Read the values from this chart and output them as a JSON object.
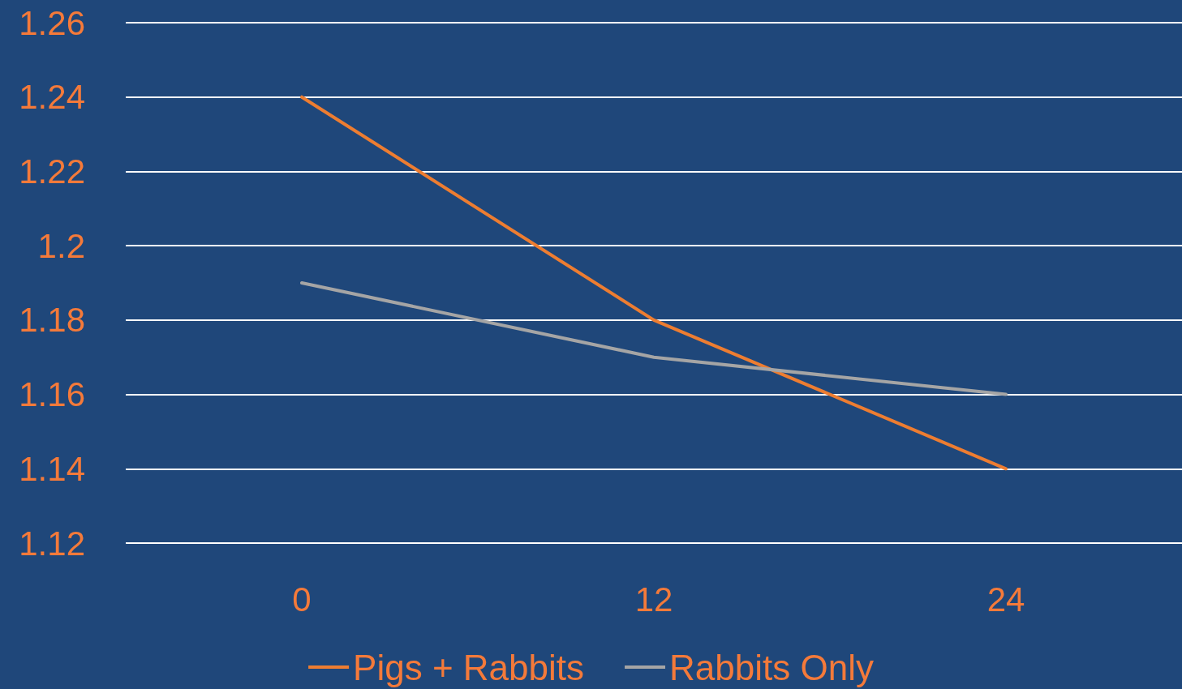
{
  "chart_data": {
    "type": "line",
    "categories": [
      "0",
      "12",
      "24"
    ],
    "series": [
      {
        "name": "Pigs + Rabbits",
        "color": "#ed7d31",
        "values": [
          1.24,
          1.18,
          1.14
        ]
      },
      {
        "name": "Rabbits Only",
        "color": "#a5a5a5",
        "values": [
          1.19,
          1.17,
          1.16
        ]
      }
    ],
    "ylim": [
      1.12,
      1.26
    ],
    "yticks": [
      1.12,
      1.14,
      1.16,
      1.18,
      1.2,
      1.22,
      1.24,
      1.26
    ],
    "grid": "y",
    "legend": "bottom",
    "marker": "none",
    "line_style": "solid"
  }
}
